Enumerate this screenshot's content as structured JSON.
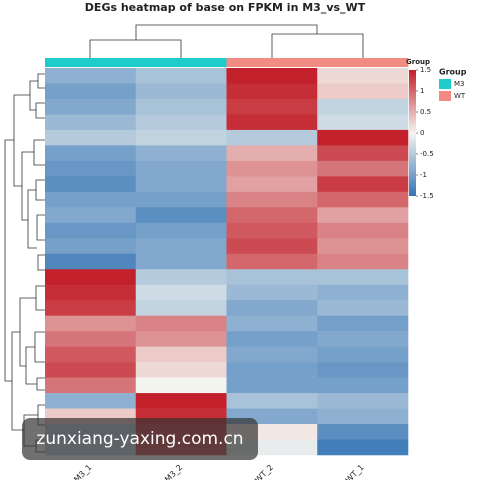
{
  "chart_data": {
    "type": "heatmap",
    "title": "DEGs heatmap of base on FPKM in M3_vs_WT",
    "columns": [
      "M3_1",
      "M3_2",
      "WT_2",
      "WT_1"
    ],
    "values": [
      [
        -0.8,
        -0.6,
        1.5,
        0.2
      ],
      [
        -1.0,
        -0.7,
        1.4,
        0.3
      ],
      [
        -0.9,
        -0.6,
        1.3,
        -0.4
      ],
      [
        -0.7,
        -0.5,
        1.4,
        -0.3
      ],
      [
        -0.5,
        -0.4,
        -0.5,
        1.5
      ],
      [
        -1.0,
        -0.8,
        0.5,
        1.2
      ],
      [
        -1.1,
        -0.9,
        0.7,
        0.9
      ],
      [
        -1.2,
        -0.9,
        0.6,
        1.3
      ],
      [
        -1.0,
        -1.0,
        0.8,
        1.0
      ],
      [
        -0.9,
        -1.2,
        1.0,
        0.6
      ],
      [
        -1.1,
        -1.0,
        1.1,
        0.8
      ],
      [
        -1.0,
        -0.9,
        1.2,
        0.7
      ],
      [
        -1.3,
        -0.9,
        1.0,
        0.8
      ],
      [
        1.5,
        -0.5,
        -0.6,
        -0.6
      ],
      [
        1.4,
        -0.3,
        -0.7,
        -0.8
      ],
      [
        1.3,
        -0.4,
        -0.9,
        -0.7
      ],
      [
        0.7,
        0.8,
        -0.8,
        -1.0
      ],
      [
        0.9,
        0.7,
        -1.0,
        -0.9
      ],
      [
        1.1,
        0.3,
        -0.9,
        -1.0
      ],
      [
        1.2,
        0.2,
        -1.0,
        -1.1
      ],
      [
        0.9,
        0.0,
        -1.0,
        -1.0
      ],
      [
        -0.8,
        1.5,
        -0.6,
        -0.7
      ],
      [
        0.3,
        1.4,
        -0.9,
        -0.8
      ],
      [
        -0.5,
        1.3,
        0.1,
        -1.2
      ],
      [
        -0.4,
        1.2,
        -0.1,
        -1.4
      ]
    ],
    "clim": [
      -1.5,
      1.5
    ],
    "colormap": [
      "#3575b5",
      "#f5f5f0",
      "#c2202a"
    ],
    "colorbar_ticks": [
      1.5,
      1,
      0.5,
      0,
      -0.5,
      -1,
      -1.5
    ],
    "group_bar_label": "Group",
    "legend_title": "Group",
    "groups": [
      {
        "name": "M3",
        "color": "#1fcccc",
        "columns": [
          "M3_1",
          "M3_2"
        ]
      },
      {
        "name": "WT",
        "color": "#f28b82",
        "columns": [
          "WT_2",
          "WT_1"
        ]
      }
    ],
    "watermark": "zunxiang-yaxing.com.cn"
  }
}
